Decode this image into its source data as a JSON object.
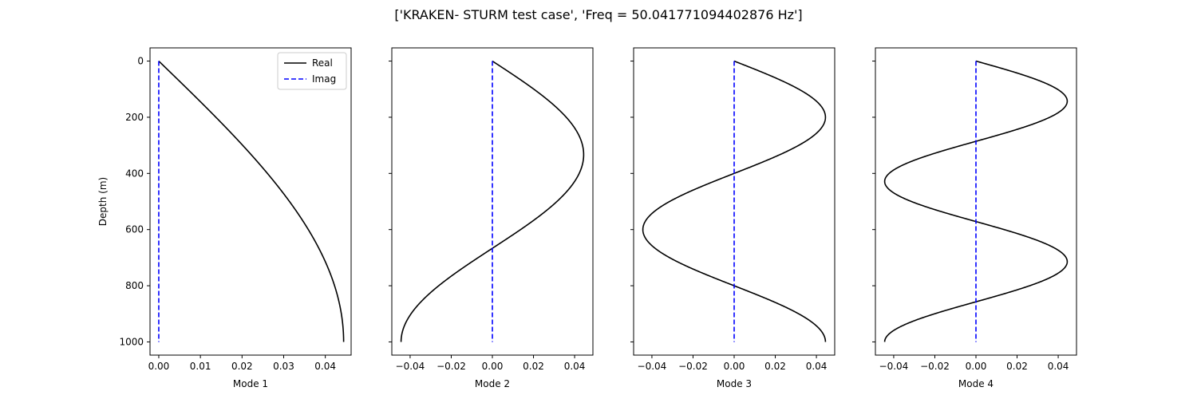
{
  "figure": {
    "title": "['KRAKEN- STURM test case', 'Freq = 50.041771094402876 Hz']"
  },
  "chart_data": [
    {
      "type": "line",
      "xlabel": "Mode 1",
      "ylabel": "Depth (m)",
      "xlim": [
        -0.0021,
        0.0462
      ],
      "ylim": [
        1047,
        -47
      ],
      "xticks": [
        0.0,
        0.01,
        0.02,
        0.03,
        0.04
      ],
      "xtick_labels": [
        "0.00",
        "0.01",
        "0.02",
        "0.03",
        "0.04"
      ],
      "yticks": [
        0,
        200,
        400,
        600,
        800,
        1000
      ],
      "show_ytick_labels": true,
      "legend": {
        "placement": "top-right",
        "entries": [
          "Real",
          "Imag"
        ]
      },
      "mode_number": 1,
      "amplitude": 0.0444,
      "series": [
        {
          "name": "Real",
          "color": "#000000",
          "style": "solid"
        },
        {
          "name": "Imag",
          "color": "#0000ff",
          "style": "dashed"
        }
      ]
    },
    {
      "type": "line",
      "xlabel": "Mode 2",
      "ylabel": "",
      "xlim": [
        -0.0489,
        0.0489
      ],
      "ylim": [
        1047,
        -47
      ],
      "xticks": [
        -0.04,
        -0.02,
        0.0,
        0.02,
        0.04
      ],
      "xtick_labels": [
        "−0.04",
        "−0.02",
        "0.00",
        "0.02",
        "0.04"
      ],
      "yticks": [
        0,
        200,
        400,
        600,
        800,
        1000
      ],
      "show_ytick_labels": false,
      "mode_number": 2,
      "amplitude": 0.0444,
      "series": [
        {
          "name": "Real",
          "color": "#000000",
          "style": "solid"
        },
        {
          "name": "Imag",
          "color": "#0000ff",
          "style": "dashed"
        }
      ]
    },
    {
      "type": "line",
      "xlabel": "Mode 3",
      "ylabel": "",
      "xlim": [
        -0.0489,
        0.0489
      ],
      "ylim": [
        1047,
        -47
      ],
      "xticks": [
        -0.04,
        -0.02,
        0.0,
        0.02,
        0.04
      ],
      "xtick_labels": [
        "−0.04",
        "−0.02",
        "0.00",
        "0.02",
        "0.04"
      ],
      "yticks": [
        0,
        200,
        400,
        600,
        800,
        1000
      ],
      "show_ytick_labels": false,
      "mode_number": 3,
      "amplitude": 0.0444,
      "series": [
        {
          "name": "Real",
          "color": "#000000",
          "style": "solid"
        },
        {
          "name": "Imag",
          "color": "#0000ff",
          "style": "dashed"
        }
      ]
    },
    {
      "type": "line",
      "xlabel": "Mode 4",
      "ylabel": "",
      "xlim": [
        -0.0489,
        0.0489
      ],
      "ylim": [
        1047,
        -47
      ],
      "xticks": [
        -0.04,
        -0.02,
        0.0,
        0.02,
        0.04
      ],
      "xtick_labels": [
        "−0.04",
        "−0.02",
        "0.00",
        "0.02",
        "0.04"
      ],
      "yticks": [
        0,
        200,
        400,
        600,
        800,
        1000
      ],
      "show_ytick_labels": false,
      "mode_number": 4,
      "amplitude": 0.0444,
      "series": [
        {
          "name": "Real",
          "color": "#000000",
          "style": "solid"
        },
        {
          "name": "Imag",
          "color": "#0000ff",
          "style": "dashed"
        }
      ]
    }
  ]
}
